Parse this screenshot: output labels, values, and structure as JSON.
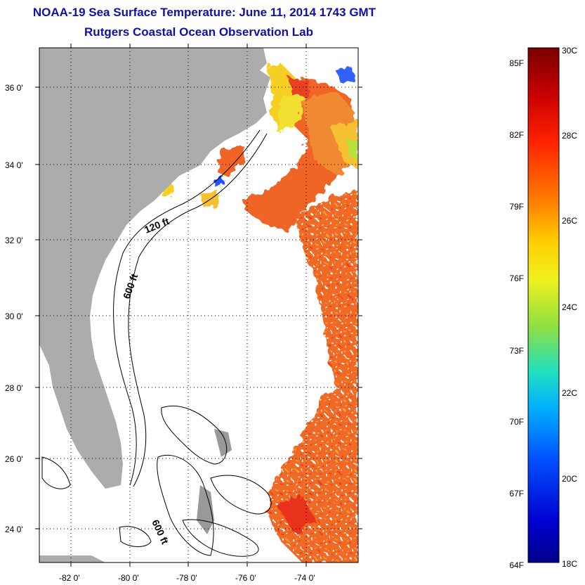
{
  "title": "NOAA-19 Sea Surface Temperature:  June 11, 2014 1743 GMT",
  "subtitle": "Rutgers Coastal Ocean Observation Lab",
  "map": {
    "lat_labels": [
      "36 0'",
      "34 0'",
      "32 0'",
      "30 0'",
      "28 0'",
      "26 0'",
      "24 0'"
    ],
    "lon_labels": [
      "-82 0'",
      "-80 0'",
      "-78 0'",
      "-76 0'",
      "-74 0'"
    ],
    "contour_labels": [
      "120 ft",
      "600 ft",
      "600 ft"
    ],
    "colors": {
      "land": "#acacac",
      "warm_sst": "#f05a20",
      "hot_sst": "#e8301a",
      "cool_sst": "#f5c820",
      "cloud": "#ffffff"
    }
  },
  "colorbar": {
    "fahrenheit_labels": [
      "85F",
      "82F",
      "79F",
      "76F",
      "73F",
      "70F",
      "67F",
      "64F"
    ],
    "celsius_labels": [
      "30C",
      "28C",
      "26C",
      "24C",
      "22C",
      "20C",
      "18C"
    ],
    "gradient": [
      "#7a0000",
      "#c80000",
      "#ff2000",
      "#ff8000",
      "#ffd000",
      "#f0f020",
      "#90e040",
      "#20e0c0",
      "#00b0ff",
      "#0050ff",
      "#0000d0",
      "#00008a"
    ]
  }
}
